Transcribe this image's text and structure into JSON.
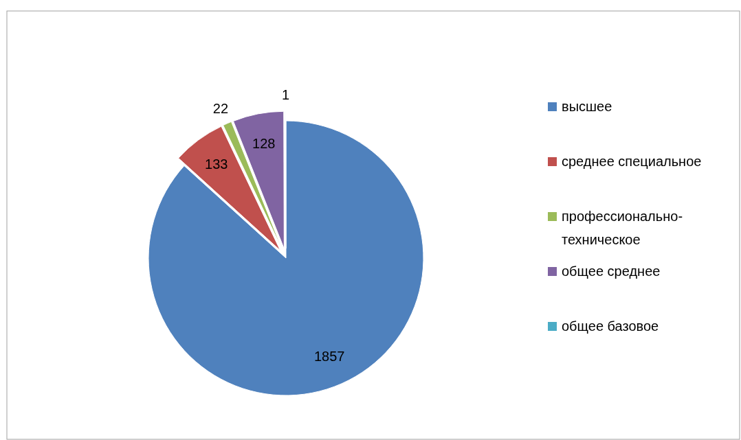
{
  "chart_data": {
    "type": "pie",
    "categories": [
      "высшее",
      "среднее специальное",
      "профессионально-техническое",
      "общее среднее",
      "общее базовое"
    ],
    "values": [
      1857,
      133,
      22,
      128,
      1
    ],
    "colors": [
      "#4f81bd",
      "#c0504d",
      "#9bbb59",
      "#8064a2",
      "#4bacc6"
    ],
    "data_labels": true,
    "legend": "right"
  }
}
